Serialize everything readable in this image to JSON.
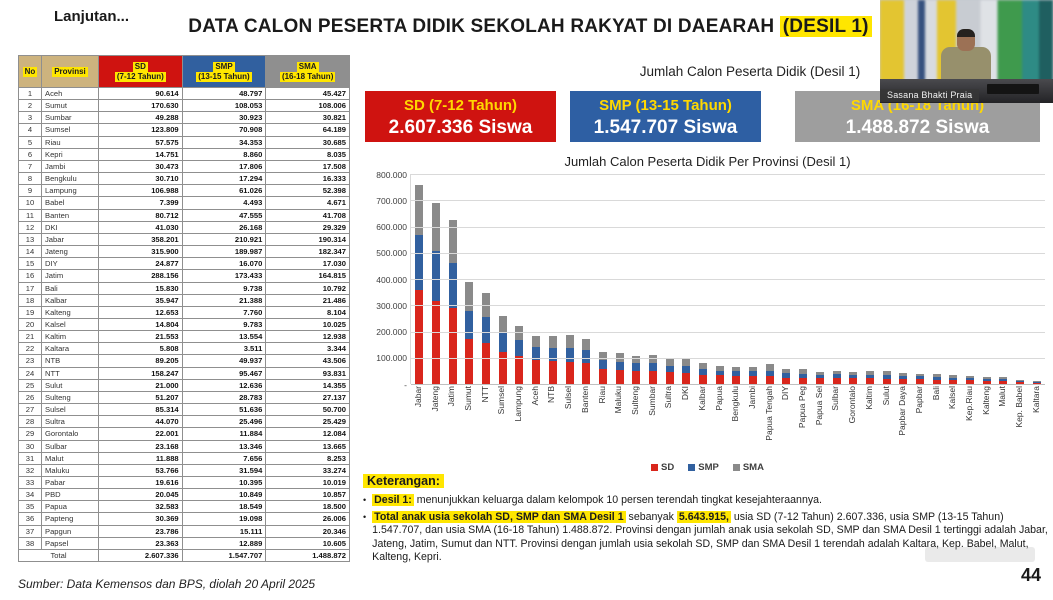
{
  "slide": {
    "continuation": "Lanjutan...",
    "title": "DATA CALON PESERTA DIDIK SEKOLAH RAKYAT DI DAEARAH",
    "title_highlight": "(DESIL 1)",
    "source": "Sumber: Data Kemensos dan BPS, diolah 20 April 2025",
    "page_number": "44"
  },
  "table": {
    "headers": {
      "no": "No",
      "province": "Provinsi",
      "sd_line1": "SD",
      "sd_line2": "(7-12 Tahun)",
      "smp_line1": "SMP",
      "smp_line2": "(13-15 Tahun)",
      "sma_line1": "SMA",
      "sma_line2": "(16-18 Tahun)"
    },
    "rows": [
      [
        "1",
        "Aceh",
        "90.614",
        "48.797",
        "45.427"
      ],
      [
        "2",
        "Sumut",
        "170.630",
        "108.053",
        "108.006"
      ],
      [
        "3",
        "Sumbar",
        "49.288",
        "30.923",
        "30.821"
      ],
      [
        "4",
        "Sumsel",
        "123.809",
        "70.908",
        "64.189"
      ],
      [
        "5",
        "Riau",
        "57.575",
        "34.353",
        "30.685"
      ],
      [
        "6",
        "Kepri",
        "14.751",
        "8.860",
        "8.035"
      ],
      [
        "7",
        "Jambi",
        "30.473",
        "17.806",
        "17.508"
      ],
      [
        "8",
        "Bengkulu",
        "30.710",
        "17.294",
        "16.333"
      ],
      [
        "9",
        "Lampung",
        "106.988",
        "61.026",
        "52.398"
      ],
      [
        "10",
        "Babel",
        "7.399",
        "4.493",
        "4.671"
      ],
      [
        "11",
        "Banten",
        "80.712",
        "47.555",
        "41.708"
      ],
      [
        "12",
        "DKI",
        "41.030",
        "26.168",
        "29.329"
      ],
      [
        "13",
        "Jabar",
        "358.201",
        "210.921",
        "190.314"
      ],
      [
        "14",
        "Jateng",
        "315.900",
        "189.987",
        "182.347"
      ],
      [
        "15",
        "DIY",
        "24.877",
        "16.070",
        "17.030"
      ],
      [
        "16",
        "Jatim",
        "288.156",
        "173.433",
        "164.815"
      ],
      [
        "17",
        "Bali",
        "15.830",
        "9.738",
        "10.792"
      ],
      [
        "18",
        "Kalbar",
        "35.947",
        "21.388",
        "21.486"
      ],
      [
        "19",
        "Kalteng",
        "12.653",
        "7.760",
        "8.104"
      ],
      [
        "20",
        "Kalsel",
        "14.804",
        "9.783",
        "10.025"
      ],
      [
        "21",
        "Kaltim",
        "21.553",
        "13.554",
        "12.938"
      ],
      [
        "22",
        "Kaltara",
        "5.808",
        "3.511",
        "3.344"
      ],
      [
        "23",
        "NTB",
        "89.205",
        "49.937",
        "43.506"
      ],
      [
        "24",
        "NTT",
        "158.247",
        "95.467",
        "93.831"
      ],
      [
        "25",
        "Sulut",
        "21.000",
        "12.636",
        "14.355"
      ],
      [
        "26",
        "Sulteng",
        "51.207",
        "28.783",
        "27.137"
      ],
      [
        "27",
        "Sulsel",
        "85.314",
        "51.636",
        "50.700"
      ],
      [
        "28",
        "Sultra",
        "44.070",
        "25.496",
        "25.429"
      ],
      [
        "29",
        "Gorontalo",
        "22.001",
        "11.884",
        "12.084"
      ],
      [
        "30",
        "Sulbar",
        "23.168",
        "13.346",
        "13.665"
      ],
      [
        "31",
        "Malut",
        "11.888",
        "7.656",
        "8.253"
      ],
      [
        "32",
        "Maluku",
        "53.766",
        "31.594",
        "33.274"
      ],
      [
        "33",
        "Pabar",
        "19.616",
        "10.395",
        "10.019"
      ],
      [
        "34",
        "PBD",
        "20.045",
        "10.849",
        "10.857"
      ],
      [
        "35",
        "Papua",
        "32.583",
        "18.549",
        "18.500"
      ],
      [
        "36",
        "Papteng",
        "30.369",
        "19.098",
        "26.006"
      ],
      [
        "37",
        "Papgun",
        "23.786",
        "15.111",
        "20.346"
      ],
      [
        "38",
        "Papsel",
        "23.363",
        "12.889",
        "10.605"
      ]
    ],
    "total_label": "Total",
    "total": [
      "2.607.336",
      "1.547.707",
      "1.488.872"
    ]
  },
  "summary": {
    "heading": "Jumlah Calon Peserta Didik (Desil 1)",
    "cards": [
      {
        "label": "SD (7-12 Tahun)",
        "value": "2.607.336 Siswa"
      },
      {
        "label": "SMP (13-15 Tahun)",
        "value": "1.547.707 Siswa"
      },
      {
        "label": "SMA (16-18 Tahun)",
        "value": "1.488.872 Siswa"
      }
    ]
  },
  "chart_data": {
    "type": "bar",
    "stacked": true,
    "title": "Jumlah Calon Peserta Didik Per Provinsi (Desil 1)",
    "categories": [
      "Jabar",
      "Jateng",
      "Jatim",
      "Sumut",
      "NTT",
      "Sumsel",
      "Lampung",
      "Aceh",
      "NTB",
      "Sulsel",
      "Banten",
      "Riau",
      "Maluku",
      "Sulteng",
      "Sumbar",
      "Sultra",
      "DKI",
      "Kalbar",
      "Papua",
      "Bengkulu",
      "Jambi",
      "Papua Tengah",
      "DIY",
      "Papua Peg",
      "Papua Sel",
      "Sulbar",
      "Gorontalo",
      "Kaltim",
      "Sulut",
      "Papbar Daya",
      "Papbar",
      "Bali",
      "Kalsel",
      "Kep.Riau",
      "Kalteng",
      "Malut",
      "Kep. Babel",
      "Kaltara"
    ],
    "series": [
      {
        "name": "SD",
        "color": "#d9261c",
        "values": [
          358201,
          315900,
          288156,
          170630,
          158247,
          123809,
          106988,
          90614,
          89205,
          85314,
          80712,
          57575,
          53766,
          51207,
          49288,
          44070,
          41030,
          35947,
          32583,
          30710,
          30473,
          30369,
          24877,
          23786,
          23363,
          23168,
          22001,
          21553,
          21000,
          20045,
          19616,
          15830,
          14804,
          14751,
          12653,
          11888,
          7399,
          5808
        ]
      },
      {
        "name": "SMP",
        "color": "#31609f",
        "values": [
          210921,
          189987,
          173433,
          108053,
          95467,
          70908,
          61026,
          48797,
          49937,
          51636,
          47555,
          34353,
          31594,
          28783,
          30923,
          25496,
          26168,
          21388,
          18549,
          17294,
          17806,
          19098,
          16070,
          15111,
          12889,
          13346,
          11884,
          13554,
          12636,
          10849,
          10395,
          9738,
          9783,
          8860,
          7760,
          7656,
          4493,
          3511
        ]
      },
      {
        "name": "SMA",
        "color": "#8a8a8a",
        "values": [
          190314,
          182347,
          164815,
          108006,
          93831,
          64189,
          52398,
          45427,
          43506,
          50700,
          41708,
          30685,
          33274,
          27137,
          30821,
          25429,
          29329,
          21486,
          18500,
          16333,
          17508,
          26006,
          17030,
          20346,
          10605,
          13665,
          12084,
          12938,
          14355,
          10857,
          10019,
          10792,
          10025,
          8035,
          8104,
          8253,
          4671,
          3344
        ]
      }
    ],
    "ylim": [
      0,
      800000
    ],
    "ytick_labels": [
      "800.000",
      "700.000",
      "600.000",
      "500.000",
      "400.000",
      "300.000",
      "200.000",
      "100.000",
      "-"
    ],
    "legend": [
      "SD",
      "SMP",
      "SMA"
    ],
    "legend_position": "bottom",
    "grid": true
  },
  "keterangan": {
    "heading": "Keterangan:",
    "b1_highlight": "Desil 1:",
    "b1_text": "menunjukkan keluarga dalam kelompok 10 persen terendah tingkat kesejahteraannya.",
    "b2_highlight1": "Total anak usia sekolah SD, SMP dan SMA Desil 1",
    "b2_mid": "sebanyak",
    "b2_highlight2": "5.643.915,",
    "b2_rest": "usia SD (7-12 Tahun) 2.607.336, usia SMP (13-15 Tahun) 1.547.707, dan usia SMA (16-18 Tahun) 1.488.872. Provinsi dengan jumlah anak usia sekolah SD, SMP dan SMA Desil 1 tertinggi adalah Jabar, Jateng, Jatim, Sumut dan NTT. Provinsi dengan jumlah usia sekolah SD, SMP dan SMA Desil 1 terendah adalah Kaltara, Kep. Babel, Malut, Kalteng, Kepri."
  },
  "webcam": {
    "name": "Sasana Bhakti Praia"
  },
  "colors": {
    "card_sd": "#cf1310",
    "card_smp": "#2e5fa3",
    "card_sma": "#9e9e9e",
    "highlight_yellow": "#ffe600",
    "header_tan": "#cdb37e"
  }
}
